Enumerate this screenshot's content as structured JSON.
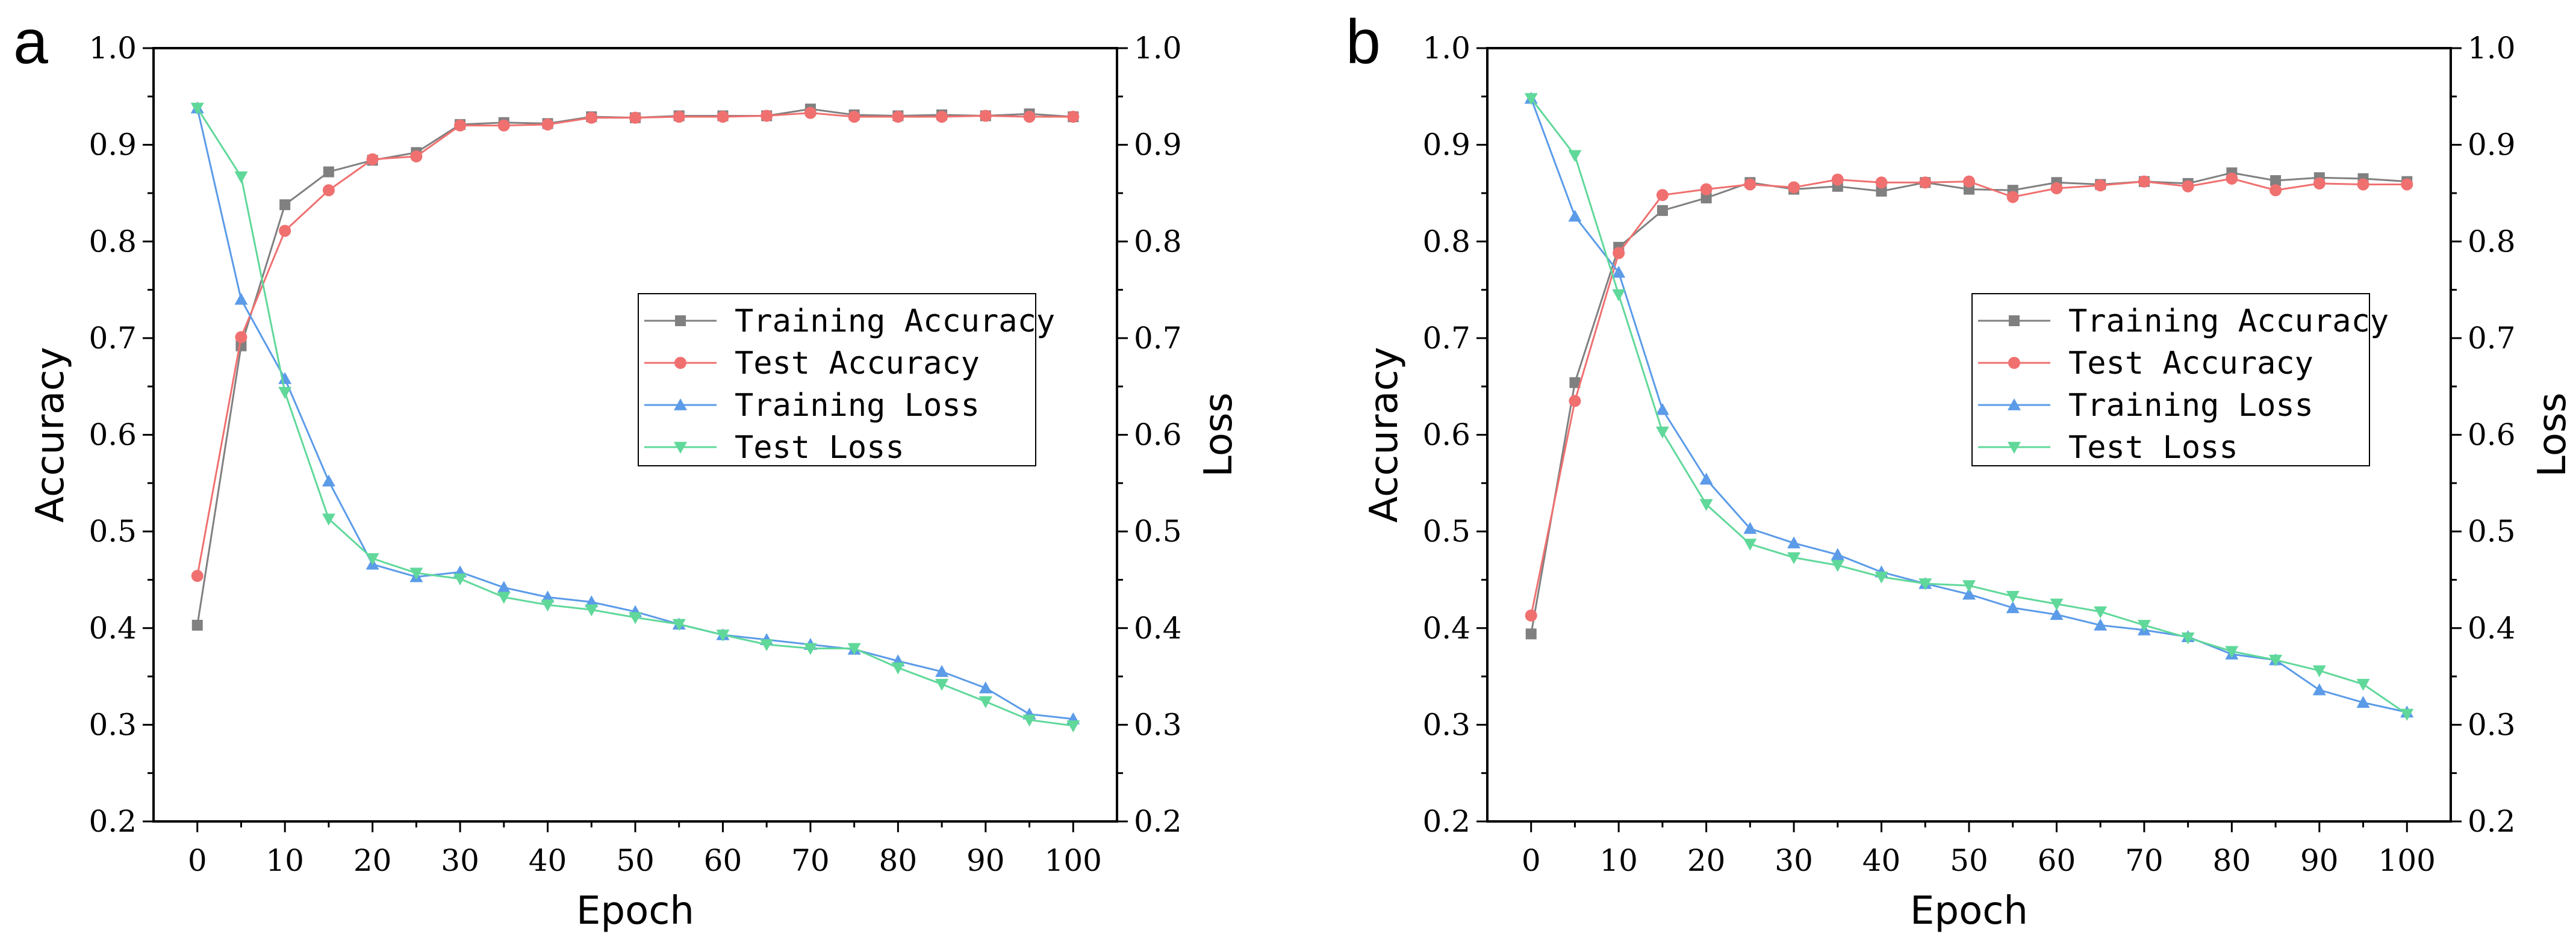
{
  "chart_data": [
    {
      "panel": "a",
      "type": "line",
      "xlabel": "Epoch",
      "ylabel": "Accuracy",
      "y2label": "Loss",
      "xlim": [
        -5,
        105
      ],
      "ylim": [
        0.2,
        1.0
      ],
      "y2lim": [
        0.2,
        1.0
      ],
      "xticks": [
        0,
        10,
        20,
        30,
        40,
        50,
        60,
        70,
        80,
        90,
        100
      ],
      "yticks": [
        "0.2",
        "0.3",
        "0.4",
        "0.5",
        "0.6",
        "0.7",
        "0.8",
        "0.9",
        "1.0"
      ],
      "legend_position": "center-right",
      "x": [
        0,
        5,
        10,
        15,
        20,
        25,
        30,
        35,
        40,
        45,
        50,
        55,
        60,
        65,
        70,
        75,
        80,
        85,
        90,
        95,
        100
      ],
      "series": [
        {
          "name": "Training Accuracy",
          "color": "#808080",
          "marker": "square",
          "axis": "left",
          "values": [
            0.403,
            0.692,
            0.838,
            0.872,
            0.884,
            0.892,
            0.921,
            0.923,
            0.922,
            0.929,
            0.928,
            0.93,
            0.93,
            0.93,
            0.937,
            0.931,
            0.93,
            0.931,
            0.93,
            0.932,
            0.929
          ]
        },
        {
          "name": "Test Accuracy",
          "color": "#f07070",
          "marker": "circle",
          "axis": "left",
          "values": [
            0.454,
            0.701,
            0.811,
            0.853,
            0.885,
            0.888,
            0.92,
            0.92,
            0.921,
            0.928,
            0.928,
            0.929,
            0.929,
            0.93,
            0.933,
            0.929,
            0.929,
            0.929,
            0.93,
            0.929,
            0.929
          ]
        },
        {
          "name": "Training Loss",
          "color": "#5b9be8",
          "marker": "triangle-up",
          "axis": "right",
          "values": [
            0.938,
            0.74,
            0.658,
            0.552,
            0.466,
            0.453,
            0.458,
            0.442,
            0.432,
            0.427,
            0.417,
            0.404,
            0.393,
            0.388,
            0.383,
            0.378,
            0.366,
            0.355,
            0.338,
            0.311,
            0.306
          ]
        },
        {
          "name": "Test Loss",
          "color": "#60d89a",
          "marker": "triangle-down",
          "axis": "right",
          "values": [
            0.938,
            0.867,
            0.644,
            0.513,
            0.472,
            0.457,
            0.451,
            0.432,
            0.424,
            0.419,
            0.411,
            0.404,
            0.393,
            0.383,
            0.379,
            0.379,
            0.359,
            0.342,
            0.324,
            0.305,
            0.299
          ]
        }
      ]
    },
    {
      "panel": "b",
      "type": "line",
      "xlabel": "Epoch",
      "ylabel": "Accuracy",
      "y2label": "Loss",
      "xlim": [
        -5,
        105
      ],
      "ylim": [
        0.2,
        1.0
      ],
      "y2lim": [
        0.2,
        1.0
      ],
      "xticks": [
        0,
        10,
        20,
        30,
        40,
        50,
        60,
        70,
        80,
        90,
        100
      ],
      "yticks": [
        "0.2",
        "0.3",
        "0.4",
        "0.5",
        "0.6",
        "0.7",
        "0.8",
        "0.9",
        "1.0"
      ],
      "legend_position": "center-right",
      "x": [
        0,
        5,
        10,
        15,
        20,
        25,
        30,
        35,
        40,
        45,
        50,
        55,
        60,
        65,
        70,
        75,
        80,
        85,
        90,
        95,
        100
      ],
      "series": [
        {
          "name": "Training Accuracy",
          "color": "#808080",
          "marker": "square",
          "axis": "left",
          "values": [
            0.394,
            0.654,
            0.794,
            0.832,
            0.845,
            0.861,
            0.854,
            0.857,
            0.852,
            0.861,
            0.854,
            0.853,
            0.861,
            0.859,
            0.862,
            0.86,
            0.871,
            0.863,
            0.866,
            0.865,
            0.862
          ]
        },
        {
          "name": "Test Accuracy",
          "color": "#f07070",
          "marker": "circle",
          "axis": "left",
          "values": [
            0.413,
            0.635,
            0.788,
            0.848,
            0.854,
            0.859,
            0.856,
            0.864,
            0.861,
            0.861,
            0.862,
            0.846,
            0.855,
            0.858,
            0.862,
            0.857,
            0.865,
            0.853,
            0.86,
            0.859,
            0.859
          ]
        },
        {
          "name": "Training Loss",
          "color": "#5b9be8",
          "marker": "triangle-up",
          "axis": "right",
          "values": [
            0.948,
            0.826,
            0.768,
            0.626,
            0.554,
            0.503,
            0.488,
            0.476,
            0.458,
            0.446,
            0.435,
            0.421,
            0.414,
            0.403,
            0.398,
            0.391,
            0.373,
            0.367,
            0.336,
            0.323,
            0.313
          ]
        },
        {
          "name": "Test Loss",
          "color": "#60d89a",
          "marker": "triangle-down",
          "axis": "right",
          "values": [
            0.948,
            0.889,
            0.745,
            0.603,
            0.528,
            0.487,
            0.473,
            0.465,
            0.453,
            0.446,
            0.444,
            0.433,
            0.425,
            0.417,
            0.403,
            0.39,
            0.376,
            0.367,
            0.356,
            0.342,
            0.311
          ]
        }
      ]
    }
  ]
}
